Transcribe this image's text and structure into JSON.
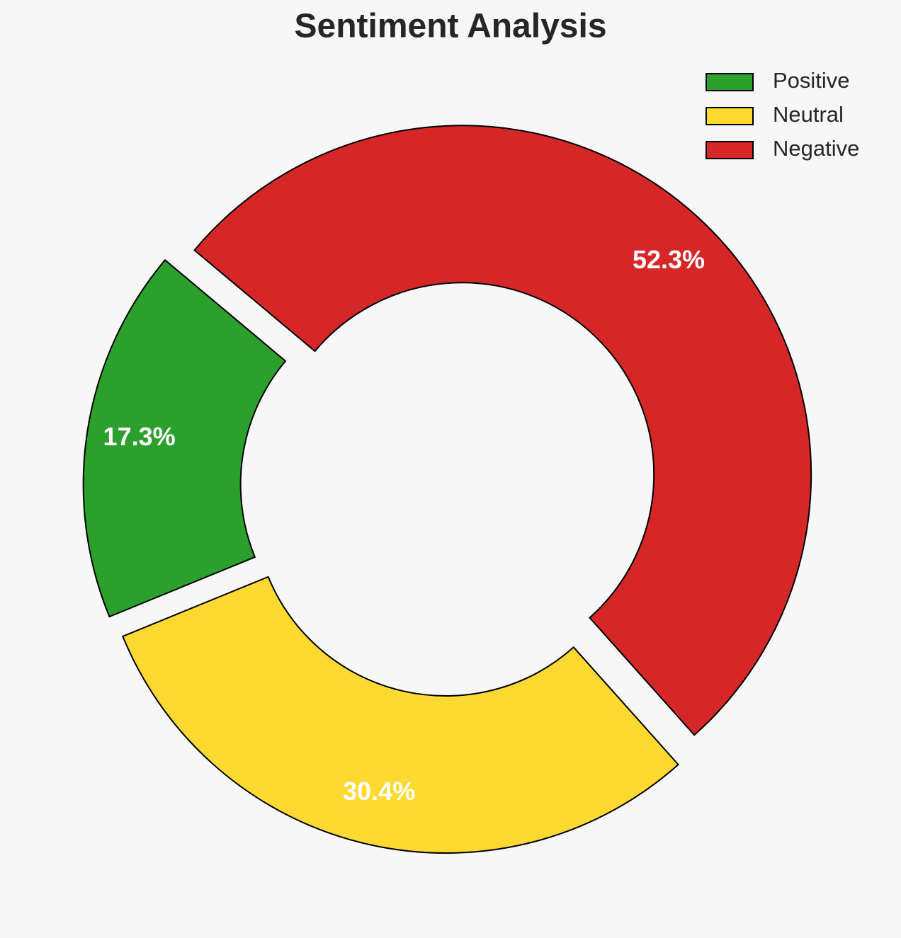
{
  "chart_data": {
    "type": "donut",
    "title": "Sentiment Analysis",
    "categories": [
      "Positive",
      "Neutral",
      "Negative"
    ],
    "values": [
      17.3,
      30.4,
      52.3
    ],
    "value_labels": [
      "17.3%",
      "30.4%",
      "52.3%"
    ],
    "colors": [
      "#2ca02c",
      "#fdd931",
      "#d62728"
    ],
    "legend": "upper right"
  }
}
